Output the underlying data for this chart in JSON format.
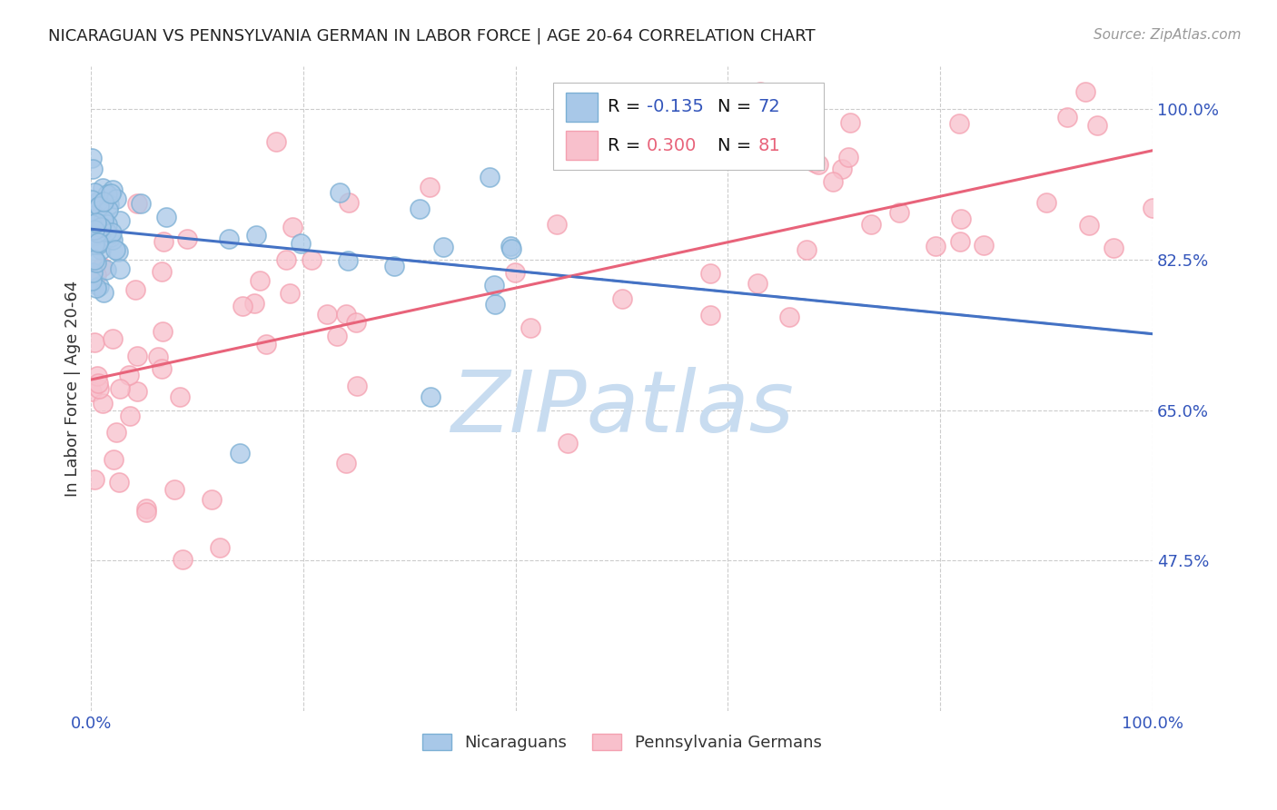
{
  "title": "NICARAGUAN VS PENNSYLVANIA GERMAN IN LABOR FORCE | AGE 20-64 CORRELATION CHART",
  "source": "Source: ZipAtlas.com",
  "ylabel": "In Labor Force | Age 20-64",
  "xlim": [
    0,
    1
  ],
  "ylim": [
    0.3,
    1.05
  ],
  "yticks": [
    0.475,
    0.65,
    0.825,
    1.0
  ],
  "ytick_labels": [
    "47.5%",
    "65.0%",
    "82.5%",
    "100.0%"
  ],
  "xticks": [
    0.0,
    0.2,
    0.4,
    0.6,
    0.8,
    1.0
  ],
  "xtick_labels": [
    "0.0%",
    "",
    "",
    "",
    "",
    "100.0%"
  ],
  "blue_R": "-0.135",
  "blue_N": "72",
  "pink_R": "0.300",
  "pink_N": "81",
  "blue_color": "#7BAFD4",
  "pink_color": "#F4A0B0",
  "blue_line_color": "#4472C4",
  "pink_line_color": "#E8637A",
  "blue_fill": "#A8C8E8",
  "pink_fill": "#F8C0CC",
  "watermark_color": "#C8DCF0",
  "watermark_text": "ZIPatlas",
  "background_color": "#FFFFFF",
  "grid_color": "#CCCCCC",
  "title_color": "#222222",
  "axis_label_color": "#333333",
  "tick_color": "#3355BB",
  "legend_text_color": "#111111",
  "legend_value_color_blue": "#3355BB",
  "legend_value_color_pink": "#E8637A"
}
